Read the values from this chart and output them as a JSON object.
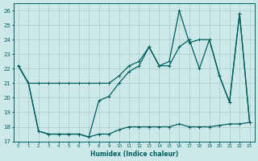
{
  "xlabel": "Humidex (Indice chaleur)",
  "background_color": "#cce8e8",
  "grid_color": "#aacccc",
  "line_color": "#006060",
  "xlim": [
    -0.5,
    23.5
  ],
  "ylim": [
    17,
    26.5
  ],
  "yticks": [
    17,
    18,
    19,
    20,
    21,
    22,
    23,
    24,
    25,
    26
  ],
  "xticks": [
    0,
    1,
    2,
    3,
    4,
    5,
    6,
    7,
    8,
    9,
    10,
    11,
    12,
    13,
    14,
    15,
    16,
    17,
    18,
    19,
    20,
    21,
    22,
    23
  ],
  "line1_x": [
    0,
    1,
    2,
    3,
    4,
    5,
    6,
    7,
    8,
    9,
    10,
    11,
    12,
    13,
    14,
    15,
    16,
    17,
    18,
    19,
    20,
    21,
    22,
    23
  ],
  "line1_y": [
    22.2,
    21.0,
    21.0,
    21.0,
    21.0,
    21.0,
    21.0,
    21.0,
    21.0,
    21.0,
    21.5,
    22.2,
    22.5,
    23.5,
    22.2,
    22.2,
    23.5,
    24.0,
    22.0,
    24.0,
    21.5,
    19.7,
    25.8,
    18.3
  ],
  "line2_x": [
    0,
    1,
    2,
    3,
    4,
    5,
    6,
    7,
    8,
    9,
    10,
    11,
    12,
    13,
    14,
    15,
    16,
    17,
    18,
    19,
    20,
    21,
    22,
    23
  ],
  "line2_y": [
    22.2,
    21.0,
    17.7,
    17.5,
    17.5,
    17.5,
    17.5,
    17.3,
    17.5,
    17.5,
    17.8,
    18.0,
    18.0,
    18.0,
    18.0,
    18.0,
    18.2,
    18.0,
    18.0,
    18.0,
    18.1,
    18.2,
    18.2,
    18.3
  ],
  "line3_x": [
    0,
    1,
    2,
    3,
    4,
    5,
    6,
    7,
    8,
    9,
    10,
    11,
    12,
    13,
    14,
    15,
    16,
    17,
    18,
    19,
    20,
    21,
    22,
    23
  ],
  "line3_y": [
    22.2,
    21.0,
    17.7,
    17.5,
    17.5,
    17.5,
    17.5,
    17.3,
    19.8,
    20.1,
    21.0,
    21.8,
    22.2,
    23.5,
    22.2,
    22.5,
    26.0,
    23.8,
    24.0,
    24.0,
    21.5,
    19.7,
    25.8,
    18.3
  ],
  "marker_size": 2.0,
  "line_width": 0.9
}
